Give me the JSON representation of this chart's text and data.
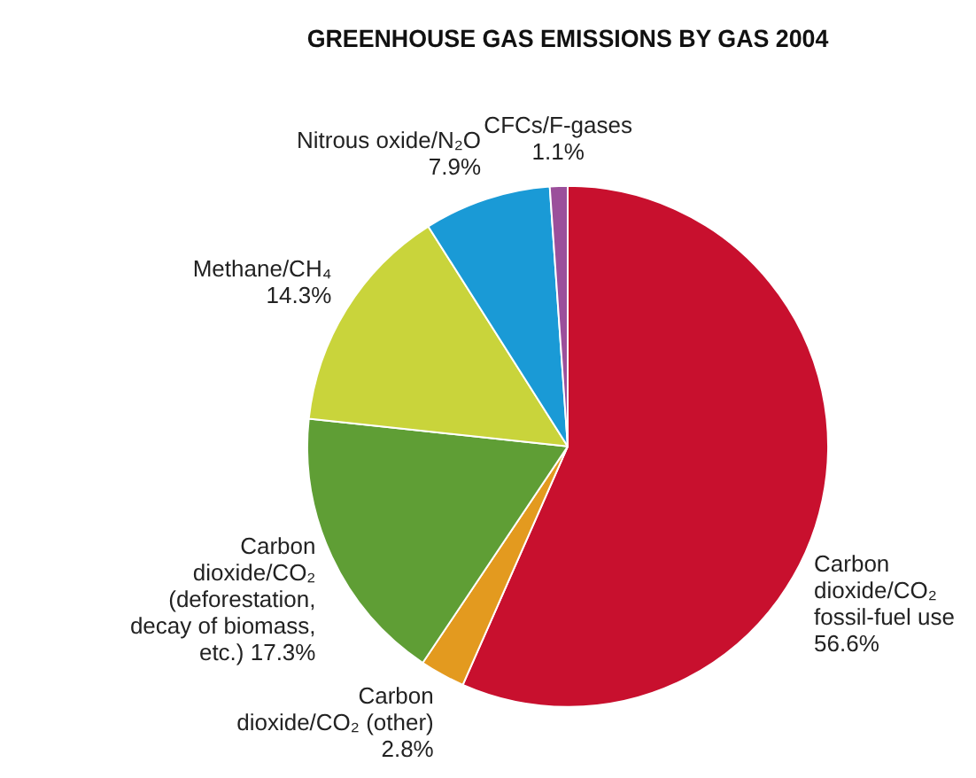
{
  "chart_data": {
    "type": "pie",
    "title": "GREENHOUSE GAS EMISSIONS BY GAS 2004",
    "categories": [
      "Carbon dioxide/CO₂ fossil-fuel use",
      "Carbon dioxide/CO₂ (other)",
      "Carbon dioxide/CO₂ (deforestation, decay of biomass, etc.)",
      "Methane/CH₄",
      "Nitrous oxide/N₂O",
      "CFCs/F-gases"
    ],
    "values": [
      56.6,
      2.8,
      17.3,
      14.3,
      7.9,
      1.1
    ],
    "value_labels": [
      "56.6%",
      "2.8%",
      "17.3%",
      "14.3%",
      "7.9%",
      "1.1%"
    ],
    "colors": [
      "#c8102e",
      "#e39a1f",
      "#5f9e35",
      "#c9d43b",
      "#1a9ad6",
      "#9b4f9b"
    ],
    "legend": false
  }
}
